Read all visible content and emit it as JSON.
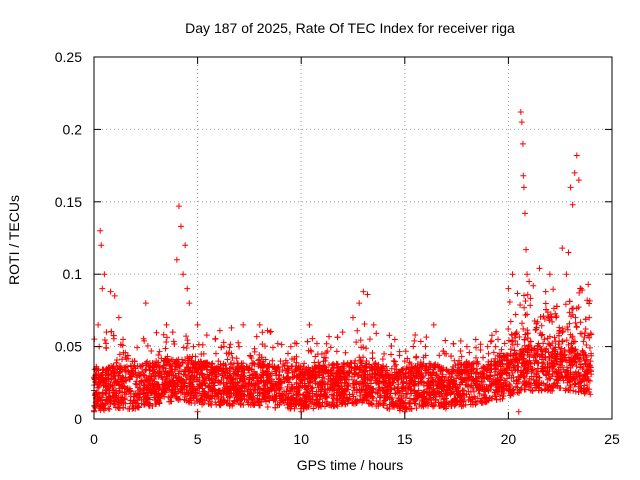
{
  "chart_data": {
    "type": "scatter",
    "title": "Day 187 of 2025, Rate Of TEC Index for receiver riga",
    "xlabel": "GPS time / hours",
    "ylabel": "ROTI / TECUs",
    "xlim": [
      0,
      25
    ],
    "ylim": [
      0,
      0.25
    ],
    "xticks": [
      0,
      5,
      10,
      15,
      20,
      25
    ],
    "xtick_labels": [
      "0",
      "5",
      "10",
      "15",
      "20",
      "25"
    ],
    "yticks": [
      0,
      0.05,
      0.1,
      0.15,
      0.2,
      0.25
    ],
    "ytick_labels": [
      "0",
      "0.05",
      "0.1",
      "0.15",
      "0.2",
      "0.25"
    ],
    "grid": true,
    "marker": "+",
    "color": "#ff0000",
    "series": [
      {
        "name": "ROTI",
        "points": [
          [
            0.1,
            0.03
          ],
          [
            0.2,
            0.065
          ],
          [
            0.25,
            0.05
          ],
          [
            0.3,
            0.13
          ],
          [
            0.35,
            0.12
          ],
          [
            0.4,
            0.09
          ],
          [
            0.5,
            0.1
          ],
          [
            0.6,
            0.06
          ],
          [
            0.8,
            0.088
          ],
          [
            1.0,
            0.085
          ],
          [
            1.2,
            0.07
          ],
          [
            1.4,
            0.055
          ],
          [
            2.0,
            0.035
          ],
          [
            2.4,
            0.03
          ],
          [
            2.5,
            0.08
          ],
          [
            3.0,
            0.04
          ],
          [
            3.5,
            0.065
          ],
          [
            3.8,
            0.06
          ],
          [
            4.0,
            0.11
          ],
          [
            4.1,
            0.147
          ],
          [
            4.2,
            0.133
          ],
          [
            4.3,
            0.1
          ],
          [
            4.4,
            0.12
          ],
          [
            4.5,
            0.09
          ],
          [
            4.6,
            0.08
          ],
          [
            4.8,
            0.05
          ],
          [
            5.0,
            0.065
          ],
          [
            5.3,
            0.045
          ],
          [
            6.0,
            0.04
          ],
          [
            6.5,
            0.045
          ],
          [
            7.0,
            0.05
          ],
          [
            7.2,
            0.065
          ],
          [
            8.0,
            0.065
          ],
          [
            8.5,
            0.06
          ],
          [
            9.0,
            0.04
          ],
          [
            9.5,
            0.05
          ],
          [
            10.4,
            0.065
          ],
          [
            11.0,
            0.045
          ],
          [
            12.0,
            0.06
          ],
          [
            12.5,
            0.07
          ],
          [
            12.8,
            0.08
          ],
          [
            13.0,
            0.088
          ],
          [
            13.2,
            0.086
          ],
          [
            13.5,
            0.065
          ],
          [
            14.0,
            0.045
          ],
          [
            15.0,
            0.04
          ],
          [
            15.5,
            0.058
          ],
          [
            16.0,
            0.05
          ],
          [
            16.4,
            0.065
          ],
          [
            17.0,
            0.045
          ],
          [
            18.0,
            0.05
          ],
          [
            19.0,
            0.05
          ],
          [
            19.5,
            0.055
          ],
          [
            20.0,
            0.09
          ],
          [
            20.2,
            0.1
          ],
          [
            20.4,
            0.06
          ],
          [
            20.6,
            0.212
          ],
          [
            20.65,
            0.205
          ],
          [
            20.7,
            0.19
          ],
          [
            20.72,
            0.168
          ],
          [
            20.75,
            0.16
          ],
          [
            20.8,
            0.142
          ],
          [
            20.85,
            0.117
          ],
          [
            20.9,
            0.1
          ],
          [
            21.0,
            0.095
          ],
          [
            21.2,
            0.092
          ],
          [
            21.5,
            0.104
          ],
          [
            21.8,
            0.088
          ],
          [
            22.0,
            0.1
          ],
          [
            22.3,
            0.07
          ],
          [
            22.6,
            0.118
          ],
          [
            22.8,
            0.1
          ],
          [
            22.9,
            0.115
          ],
          [
            23.0,
            0.16
          ],
          [
            23.1,
            0.148
          ],
          [
            23.2,
            0.17
          ],
          [
            23.3,
            0.182
          ],
          [
            23.4,
            0.165
          ],
          [
            23.5,
            0.09
          ],
          [
            23.8,
            0.082
          ],
          [
            23.9,
            0.07
          ],
          [
            0.0,
            0.005
          ],
          [
            5.0,
            0.005
          ],
          [
            10.0,
            0.005
          ],
          [
            15.0,
            0.005
          ],
          [
            20.5,
            0.005
          ]
        ],
        "density_baseline": [
          [
            0,
            0.02
          ],
          [
            1,
            0.022
          ],
          [
            2,
            0.022
          ],
          [
            3,
            0.024
          ],
          [
            4,
            0.028
          ],
          [
            5,
            0.025
          ],
          [
            6,
            0.024
          ],
          [
            7,
            0.024
          ],
          [
            8,
            0.024
          ],
          [
            9,
            0.022
          ],
          [
            10,
            0.022
          ],
          [
            11,
            0.022
          ],
          [
            12,
            0.024
          ],
          [
            13,
            0.026
          ],
          [
            14,
            0.022
          ],
          [
            15,
            0.02
          ],
          [
            16,
            0.024
          ],
          [
            17,
            0.022
          ],
          [
            18,
            0.024
          ],
          [
            19,
            0.026
          ],
          [
            20,
            0.03
          ],
          [
            21,
            0.034
          ],
          [
            22,
            0.034
          ],
          [
            23,
            0.034
          ],
          [
            24,
            0.032
          ]
        ]
      }
    ]
  }
}
